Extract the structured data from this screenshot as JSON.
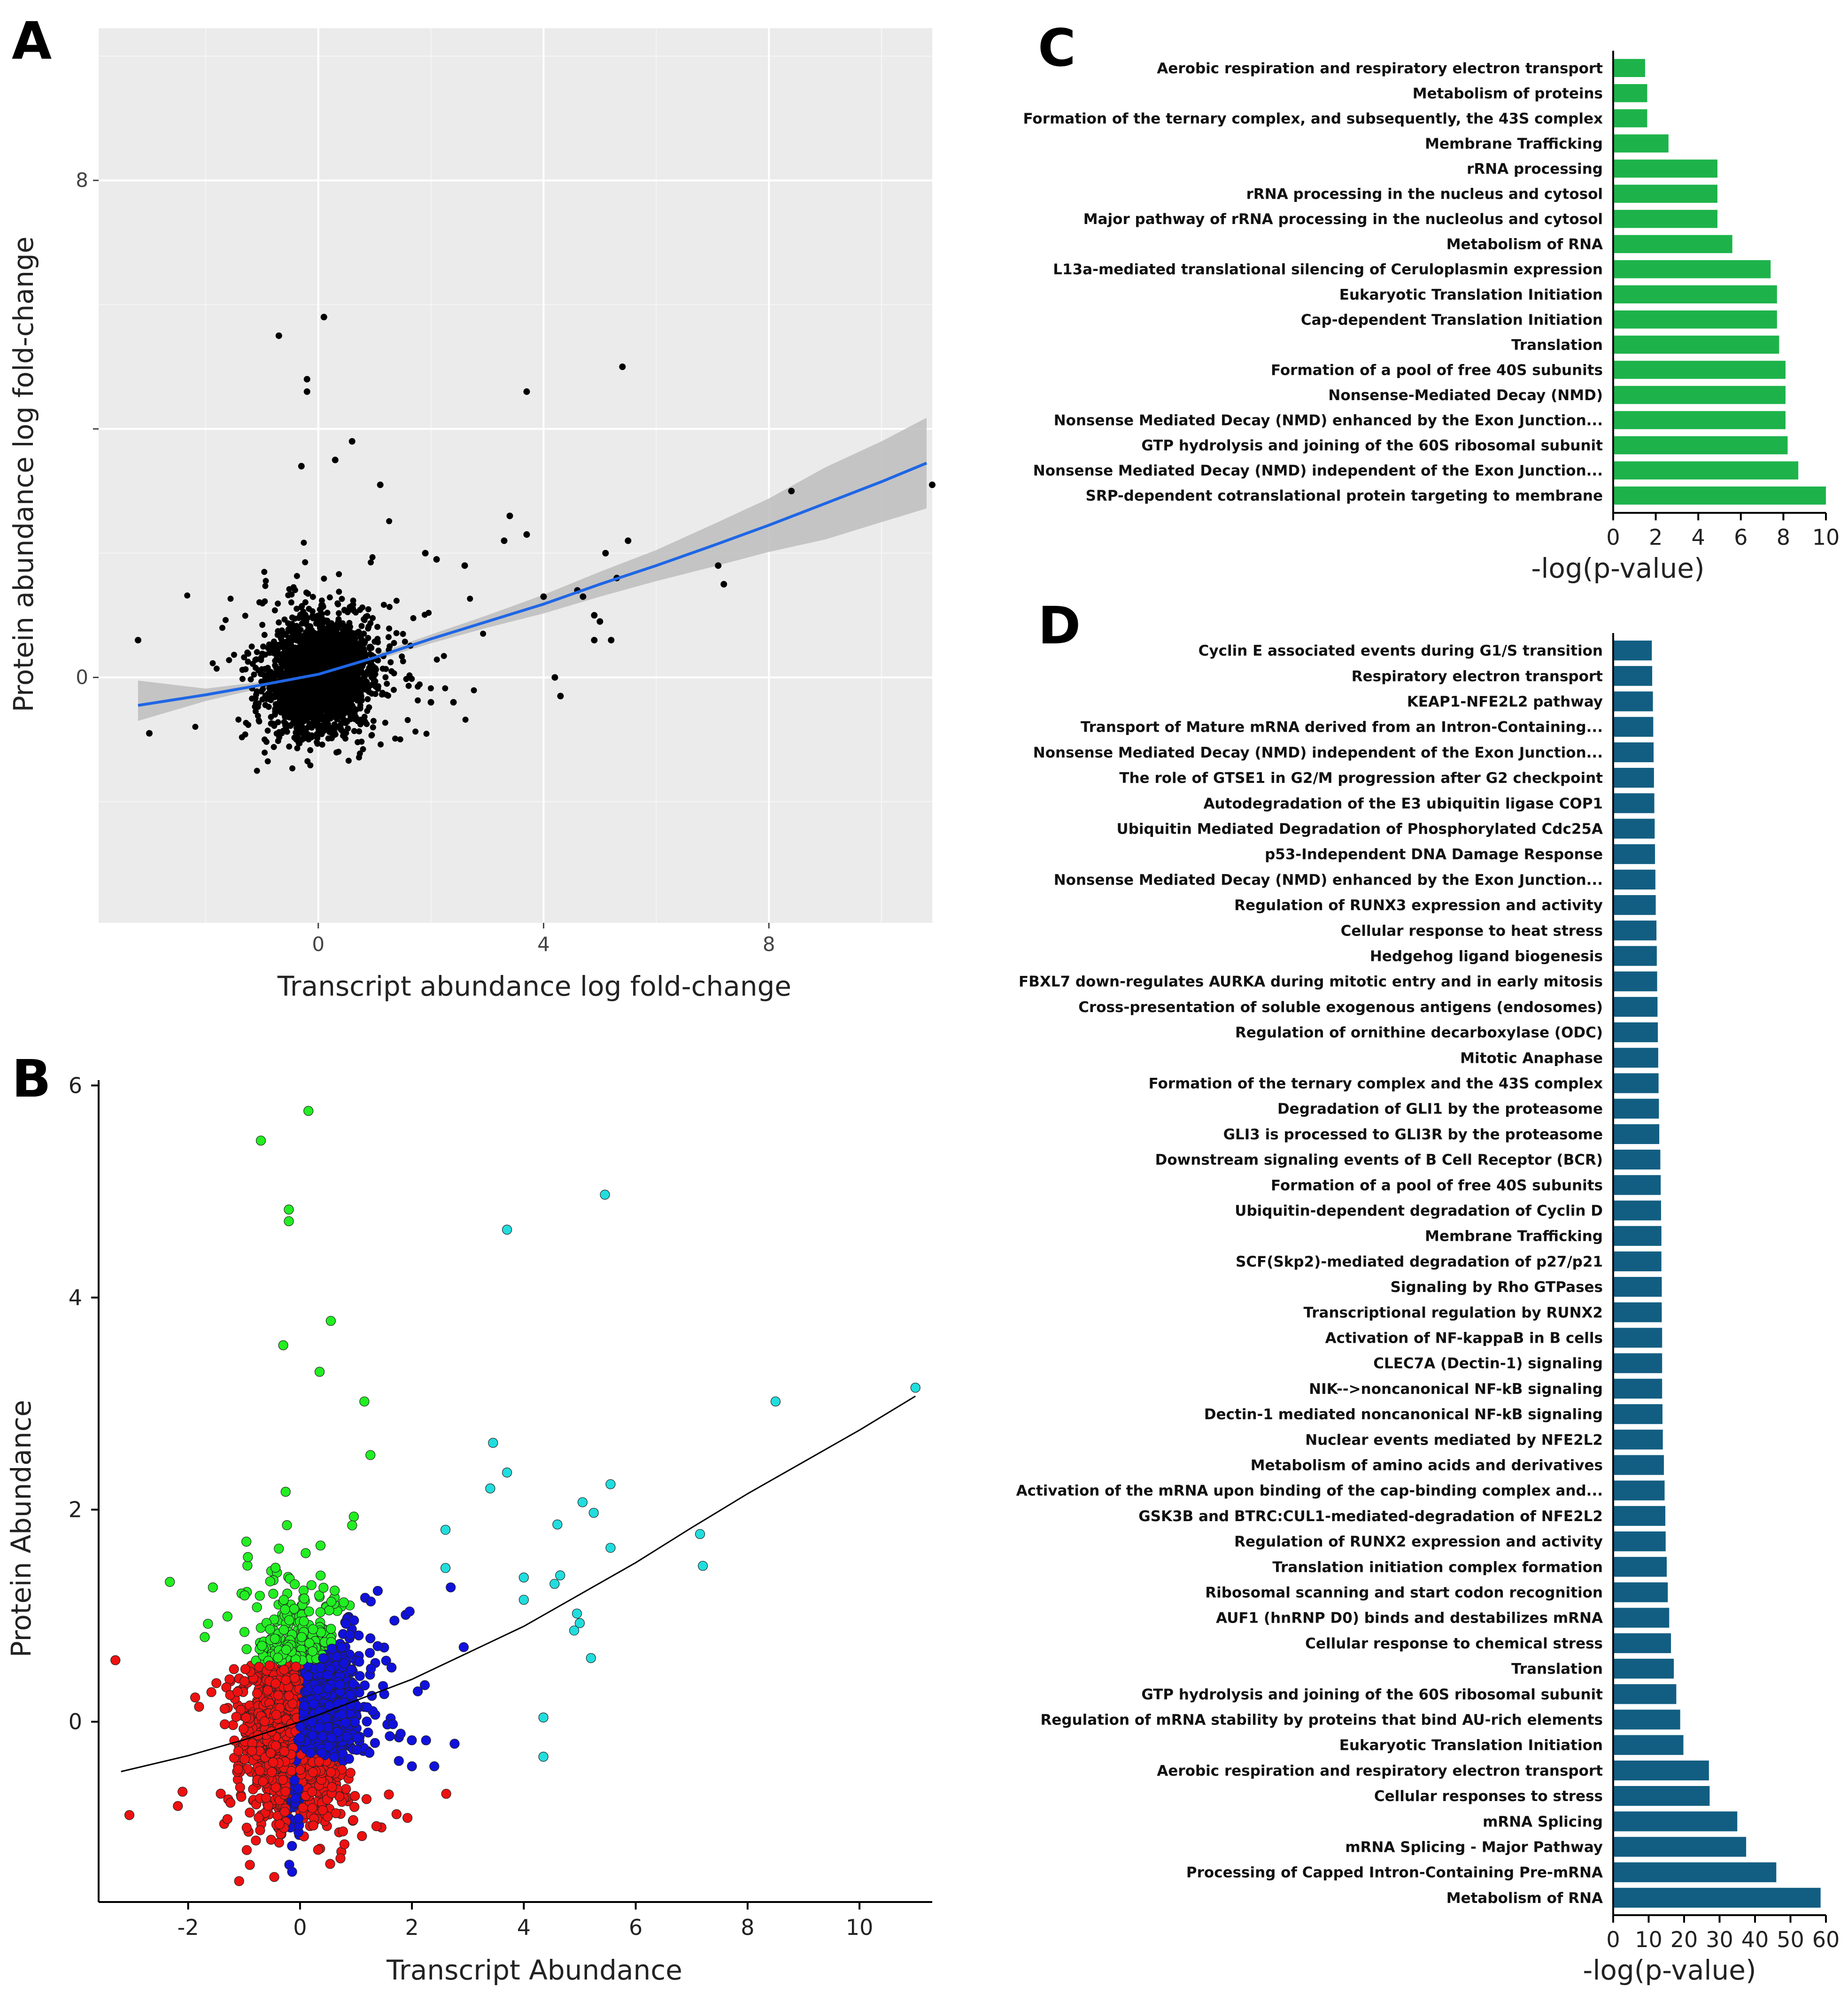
{
  "figure": {
    "panels": [
      {
        "id": "A",
        "letter": "A"
      },
      {
        "id": "B",
        "letter": "B"
      },
      {
        "id": "C",
        "letter": "C"
      },
      {
        "id": "D",
        "letter": "D"
      }
    ]
  },
  "chart_data": [
    {
      "panel": "A",
      "type": "scatter",
      "title": "",
      "xlabel": "Transcript abundance log fold-change",
      "ylabel": "Protein abundance log fold-change",
      "xlim": [
        -3.9,
        10.9
      ],
      "ylim": [
        -3.95,
        10.45
      ],
      "xticks": [
        {
          "v": 0,
          "label": "0"
        },
        {
          "v": 4,
          "label": "4"
        },
        {
          "v": 8,
          "label": "8"
        }
      ],
      "yticks": [
        {
          "v": 0,
          "label": "0"
        },
        {
          "v": 4,
          "label": ""
        },
        {
          "v": 8,
          "label": "8"
        }
      ],
      "grid": true,
      "background": "#ebebeb",
      "point_color": "#000000",
      "fit": {
        "name": "loess fit",
        "color": "#1f66e5",
        "band_color": "#bdbdbd",
        "x": [
          -3.2,
          -2,
          -1,
          0,
          1,
          2,
          3,
          4,
          5,
          6,
          7,
          8,
          9,
          10,
          10.8
        ],
        "y": [
          -0.45,
          -0.28,
          -0.12,
          0.05,
          0.32,
          0.62,
          0.9,
          1.18,
          1.5,
          1.8,
          2.12,
          2.45,
          2.8,
          3.15,
          3.45
        ],
        "lower": [
          -0.7,
          -0.38,
          -0.17,
          0.0,
          0.27,
          0.55,
          0.8,
          1.03,
          1.3,
          1.55,
          1.78,
          2.02,
          2.22,
          2.5,
          2.72
        ],
        "upper": [
          -0.05,
          -0.18,
          -0.07,
          0.1,
          0.37,
          0.69,
          1.0,
          1.33,
          1.7,
          2.05,
          2.46,
          2.88,
          3.38,
          3.8,
          4.18
        ]
      },
      "highlighted_points": [
        {
          "x": 0.1,
          "y": 5.8
        },
        {
          "x": -0.7,
          "y": 5.5
        },
        {
          "x": -0.2,
          "y": 4.8
        },
        {
          "x": -0.2,
          "y": 4.6
        },
        {
          "x": 0.6,
          "y": 3.8
        },
        {
          "x": 0.3,
          "y": 3.5
        },
        {
          "x": 1.1,
          "y": 3.1
        },
        {
          "x": -0.3,
          "y": 3.4
        },
        {
          "x": 5.4,
          "y": 5.0
        },
        {
          "x": 3.7,
          "y": 4.6
        },
        {
          "x": 8.4,
          "y": 3.0
        },
        {
          "x": 10.9,
          "y": 3.1
        },
        {
          "x": 3.4,
          "y": 2.6
        },
        {
          "x": 3.7,
          "y": 2.3
        },
        {
          "x": 3.3,
          "y": 2.2
        },
        {
          "x": 5.5,
          "y": 2.2
        },
        {
          "x": 7.1,
          "y": 1.8
        },
        {
          "x": 7.2,
          "y": 1.5
        },
        {
          "x": 5.1,
          "y": 2.0
        },
        {
          "x": 5.3,
          "y": 1.6
        },
        {
          "x": 4.0,
          "y": 1.3
        },
        {
          "x": 4.6,
          "y": 1.4
        },
        {
          "x": 4.7,
          "y": 1.3
        },
        {
          "x": 4.9,
          "y": 1.0
        },
        {
          "x": 5.0,
          "y": 0.9
        },
        {
          "x": 4.9,
          "y": 0.6
        },
        {
          "x": 5.2,
          "y": 0.6
        },
        {
          "x": 4.2,
          "y": 0.0
        },
        {
          "x": 4.3,
          "y": -0.3
        },
        {
          "x": -3.2,
          "y": 0.6
        },
        {
          "x": -3.0,
          "y": -0.9
        },
        {
          "x": 2.4,
          "y": -0.4
        },
        {
          "x": 2.0,
          "y": -0.4
        },
        {
          "x": 2.6,
          "y": 1.8
        },
        {
          "x": 1.9,
          "y": 2.0
        },
        {
          "x": 2.1,
          "y": 1.9
        }
      ]
    },
    {
      "panel": "B",
      "type": "scatter",
      "title": "",
      "xlabel": "Transcript Abundance",
      "ylabel": "Protein Abundance",
      "xlim": [
        -3.6,
        11.3
      ],
      "ylim": [
        -1.7,
        6.05
      ],
      "xticks": [
        {
          "v": -2,
          "label": "-2"
        },
        {
          "v": 0,
          "label": "0"
        },
        {
          "v": 2,
          "label": "2"
        },
        {
          "v": 4,
          "label": "4"
        },
        {
          "v": 6,
          "label": "6"
        },
        {
          "v": 8,
          "label": "8"
        },
        {
          "v": 10,
          "label": "10"
        }
      ],
      "yticks": [
        {
          "v": 0,
          "label": "0"
        },
        {
          "v": 2,
          "label": "2"
        },
        {
          "v": 4,
          "label": "4"
        },
        {
          "v": 6,
          "label": "6"
        }
      ],
      "grid": false,
      "fit": {
        "name": "fit line",
        "color": "#000000",
        "x": [
          -3.2,
          -2,
          -1,
          0,
          1,
          2,
          3,
          4,
          5,
          6,
          7,
          8,
          9,
          10,
          11
        ],
        "y": [
          -0.47,
          -0.32,
          -0.17,
          0.0,
          0.2,
          0.4,
          0.65,
          0.9,
          1.2,
          1.5,
          1.83,
          2.15,
          2.45,
          2.75,
          3.07
        ]
      },
      "groups": [
        {
          "name": "red",
          "color": "#ee1111"
        },
        {
          "name": "green",
          "color": "#22ee22"
        },
        {
          "name": "blue",
          "color": "#1111dd"
        },
        {
          "name": "cyan",
          "color": "#22dddd"
        }
      ],
      "highlighted_points": [
        {
          "x": 5.45,
          "y": 4.97,
          "group": "cyan"
        },
        {
          "x": 3.7,
          "y": 4.64,
          "group": "cyan"
        },
        {
          "x": 11.0,
          "y": 3.15,
          "group": "cyan"
        },
        {
          "x": 8.5,
          "y": 3.02,
          "group": "cyan"
        },
        {
          "x": 3.45,
          "y": 2.63,
          "group": "cyan"
        },
        {
          "x": 3.7,
          "y": 2.35,
          "group": "cyan"
        },
        {
          "x": 3.4,
          "y": 2.2,
          "group": "cyan"
        },
        {
          "x": 5.55,
          "y": 2.24,
          "group": "cyan"
        },
        {
          "x": 5.05,
          "y": 2.07,
          "group": "cyan"
        },
        {
          "x": 5.25,
          "y": 1.97,
          "group": "cyan"
        },
        {
          "x": 4.6,
          "y": 1.86,
          "group": "cyan"
        },
        {
          "x": 2.6,
          "y": 1.81,
          "group": "cyan"
        },
        {
          "x": 7.15,
          "y": 1.77,
          "group": "cyan"
        },
        {
          "x": 5.55,
          "y": 1.64,
          "group": "cyan"
        },
        {
          "x": 7.2,
          "y": 1.47,
          "group": "cyan"
        },
        {
          "x": 2.6,
          "y": 1.45,
          "group": "cyan"
        },
        {
          "x": 4.0,
          "y": 1.36,
          "group": "cyan"
        },
        {
          "x": 4.65,
          "y": 1.38,
          "group": "cyan"
        },
        {
          "x": 4.55,
          "y": 1.3,
          "group": "cyan"
        },
        {
          "x": 4.0,
          "y": 1.15,
          "group": "cyan"
        },
        {
          "x": 4.95,
          "y": 1.02,
          "group": "cyan"
        },
        {
          "x": 5.0,
          "y": 0.93,
          "group": "cyan"
        },
        {
          "x": 4.9,
          "y": 0.86,
          "group": "cyan"
        },
        {
          "x": 5.2,
          "y": 0.6,
          "group": "cyan"
        },
        {
          "x": 4.35,
          "y": 0.04,
          "group": "cyan"
        },
        {
          "x": 4.35,
          "y": -0.33,
          "group": "cyan"
        },
        {
          "x": 0.15,
          "y": 5.76,
          "group": "green"
        },
        {
          "x": -0.7,
          "y": 5.48,
          "group": "green"
        },
        {
          "x": -0.2,
          "y": 4.83,
          "group": "green"
        },
        {
          "x": -0.2,
          "y": 4.72,
          "group": "green"
        },
        {
          "x": 0.55,
          "y": 3.78,
          "group": "green"
        },
        {
          "x": 1.15,
          "y": 3.02,
          "group": "green"
        },
        {
          "x": -0.3,
          "y": 3.55,
          "group": "green"
        },
        {
          "x": 0.35,
          "y": 3.3,
          "group": "green"
        },
        {
          "x": -3.3,
          "y": 0.58,
          "group": "red"
        },
        {
          "x": -3.05,
          "y": -0.88,
          "group": "red"
        },
        {
          "x": -2.1,
          "y": -0.66,
          "group": "red"
        },
        {
          "x": 2.4,
          "y": -0.42,
          "group": "blue"
        },
        {
          "x": 2.0,
          "y": -0.42,
          "group": "blue"
        }
      ]
    },
    {
      "panel": "C",
      "type": "bar",
      "orientation": "horizontal",
      "title": "",
      "xlabel": "-log(p-value)",
      "ylabel": "",
      "xlim": [
        0,
        10
      ],
      "xticks": [
        "0",
        "2",
        "4",
        "6",
        "8",
        "10"
      ],
      "color": "#1db34a",
      "categories": [
        "Aerobic respiration and respiratory electron transport",
        "Metabolism of proteins",
        "Formation of the ternary complex, and subsequently, the 43S complex",
        "Membrane Trafficking",
        "rRNA processing",
        "rRNA processing in the nucleus and cytosol",
        "Major pathway of rRNA processing in the nucleolus and cytosol",
        "Metabolism of RNA",
        "L13a-mediated translational silencing of Ceruloplasmin expression",
        "Eukaryotic Translation Initiation",
        "Cap-dependent Translation Initiation",
        "Translation",
        "Formation of a pool of free 40S subunits",
        "Nonsense-Mediated Decay (NMD)",
        "Nonsense Mediated Decay (NMD) enhanced by the Exon Junction...",
        "GTP hydrolysis and joining of the 60S ribosomal subunit",
        "Nonsense Mediated Decay (NMD) independent of the Exon Junction...",
        "SRP-dependent cotranslational protein targeting to membrane"
      ],
      "values": [
        1.5,
        1.6,
        1.6,
        2.6,
        4.9,
        4.9,
        4.9,
        5.6,
        7.4,
        7.7,
        7.7,
        7.8,
        8.1,
        8.1,
        8.1,
        8.2,
        8.7,
        10.0
      ]
    },
    {
      "panel": "D",
      "type": "bar",
      "orientation": "horizontal",
      "title": "",
      "xlabel": "-log(p-value)",
      "ylabel": "",
      "xlim": [
        0,
        60
      ],
      "xticks": [
        "0",
        "10",
        "20",
        "30",
        "40",
        "50",
        "60"
      ],
      "color": "#125e82",
      "categories": [
        "Cyclin E associated events during G1/S transition",
        "Respiratory electron transport",
        "KEAP1-NFE2L2 pathway",
        "Transport of Mature mRNA derived from an Intron-Containing...",
        "Nonsense Mediated Decay (NMD) independent of the Exon Junction...",
        "The role of GTSE1 in G2/M progression after G2 checkpoint",
        "Autodegradation of the E3 ubiquitin ligase COP1",
        "Ubiquitin Mediated Degradation of Phosphorylated Cdc25A",
        "p53-Independent DNA Damage Response",
        "Nonsense Mediated Decay (NMD) enhanced by the Exon Junction...",
        "Regulation of RUNX3 expression and activity",
        "Cellular response to heat stress",
        "Hedgehog ligand biogenesis",
        "FBXL7 down-regulates AURKA during mitotic entry and in early mitosis",
        "Cross-presentation of soluble exogenous antigens (endosomes)",
        "Regulation of ornithine decarboxylase (ODC)",
        "Mitotic Anaphase",
        "Formation of the ternary complex and the 43S complex",
        "Degradation of GLI1 by the proteasome",
        "GLI3 is processed to GLI3R by the proteasome",
        "Downstream signaling events of B Cell Receptor (BCR)",
        "Formation of a pool of free 40S subunits",
        "Ubiquitin-dependent degradation of Cyclin D",
        "Membrane Trafficking",
        "SCF(Skp2)-mediated degradation of p27/p21",
        "Signaling by Rho GTPases",
        "Transcriptional regulation by RUNX2",
        "Activation of NF-kappaB in B cells",
        "CLEC7A (Dectin-1) signaling",
        "NIK-->noncanonical NF-kB signaling",
        "Dectin-1 mediated noncanonical NF-kB signaling",
        "Nuclear events mediated by NFE2L2",
        "Metabolism of amino acids and derivatives",
        "Activation of the mRNA upon binding of the cap-binding complex and...",
        "GSK3B and BTRC:CUL1-mediated-degradation of NFE2L2",
        "Regulation of RUNX2 expression and activity",
        "Translation initiation complex formation",
        "Ribosomal scanning and start codon recognition",
        "AUF1 (hnRNP D0) binds and destabilizes mRNA",
        "Cellular response to chemical stress",
        "Translation",
        "GTP hydrolysis and joining of the 60S ribosomal subunit",
        "Regulation of mRNA stability by proteins that bind AU-rich elements",
        "Eukaryotic Translation Initiation",
        "Aerobic respiration and respiratory electron transport",
        "Cellular responses to stress",
        "mRNA Splicing",
        "mRNA Splicing - Major Pathway",
        "Processing of Capped Intron-Containing Pre-mRNA",
        "Metabolism of RNA"
      ],
      "values": [
        10.9,
        11.0,
        11.2,
        11.3,
        11.4,
        11.5,
        11.6,
        11.7,
        11.8,
        11.9,
        12.0,
        12.2,
        12.3,
        12.4,
        12.5,
        12.6,
        12.7,
        12.8,
        12.9,
        13.0,
        13.3,
        13.4,
        13.5,
        13.6,
        13.6,
        13.7,
        13.7,
        13.8,
        13.8,
        13.8,
        13.9,
        14.0,
        14.3,
        14.5,
        14.7,
        14.8,
        15.1,
        15.4,
        15.8,
        16.3,
        17.1,
        17.8,
        18.9,
        19.8,
        27.0,
        27.2,
        35.0,
        37.5,
        46.0,
        58.5
      ]
    }
  ]
}
